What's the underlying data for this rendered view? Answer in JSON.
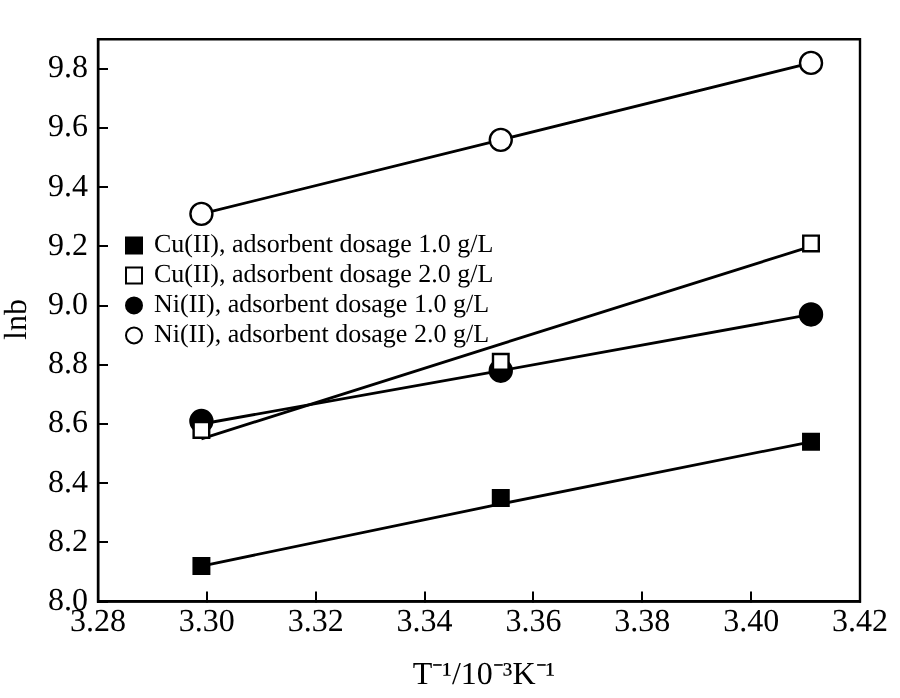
{
  "chart_data": {
    "type": "scatter",
    "xlabel": "T⁻¹/10⁻³K⁻¹",
    "ylabel": "lnb",
    "xlim": [
      3.28,
      3.42
    ],
    "xticks": [
      {
        "value": 3.28,
        "label": "3.28"
      },
      {
        "value": 3.3,
        "label": "3.30"
      },
      {
        "value": 3.32,
        "label": "3.32"
      },
      {
        "value": 3.34,
        "label": "3.34"
      },
      {
        "value": 3.36,
        "label": "3.36"
      },
      {
        "value": 3.38,
        "label": "3.38"
      },
      {
        "value": 3.4,
        "label": "3.40"
      },
      {
        "value": 3.42,
        "label": "3.42"
      }
    ],
    "ylim": [
      8.0,
      9.9
    ],
    "yticks": [
      {
        "value": 8,
        "label": "8.0"
      },
      {
        "value": 8.2,
        "label": "8.2"
      },
      {
        "value": 8.4,
        "label": "8.4"
      },
      {
        "value": 8.6,
        "label": "8.6"
      },
      {
        "value": 8.8,
        "label": "8.8"
      },
      {
        "value": 9,
        "label": "9.0"
      },
      {
        "value": 9.2,
        "label": "9.2"
      },
      {
        "value": 9.4,
        "label": "9.4"
      },
      {
        "value": 9.6,
        "label": "9.6"
      },
      {
        "value": 9.8,
        "label": "9.8"
      }
    ],
    "grid": false,
    "legend": "left",
    "x": [
      3.299,
      3.354,
      3.411
    ],
    "series": [
      {
        "name": "Cu(II), adsorbent dosage 1.0 g/L",
        "color": "#000000",
        "marker": "square",
        "values": [
          8.12,
          8.35,
          8.54
        ]
      },
      {
        "name": "Cu(II), adsorbent dosage 2.0 g/L",
        "color": "#ffffff",
        "marker": "square",
        "values": [
          8.58,
          8.81,
          9.21
        ]
      },
      {
        "name": "Ni(II), adsorbent dosage 1.0 g/L",
        "color": "#000000",
        "marker": "circle",
        "values": [
          8.61,
          8.78,
          8.97
        ]
      },
      {
        "name": "Ni(II), adsorbent dosage 2.0 g/L",
        "color": "#ffffff",
        "marker": "circle",
        "values": [
          9.31,
          9.56,
          9.82
        ]
      },
      {
        "type": "line",
        "color": "#000000",
        "marker": "none",
        "values": [
          8.12,
          8.33,
          8.54
        ]
      },
      {
        "type": "line",
        "color": "#000000",
        "marker": "none",
        "values": [
          8.55,
          8.87,
          9.2
        ]
      },
      {
        "type": "line",
        "color": "#000000",
        "marker": "none",
        "values": [
          8.6,
          8.78,
          8.97
        ]
      },
      {
        "type": "line",
        "color": "#000000",
        "marker": "none",
        "values": [
          9.31,
          9.56,
          9.82
        ]
      }
    ]
  }
}
